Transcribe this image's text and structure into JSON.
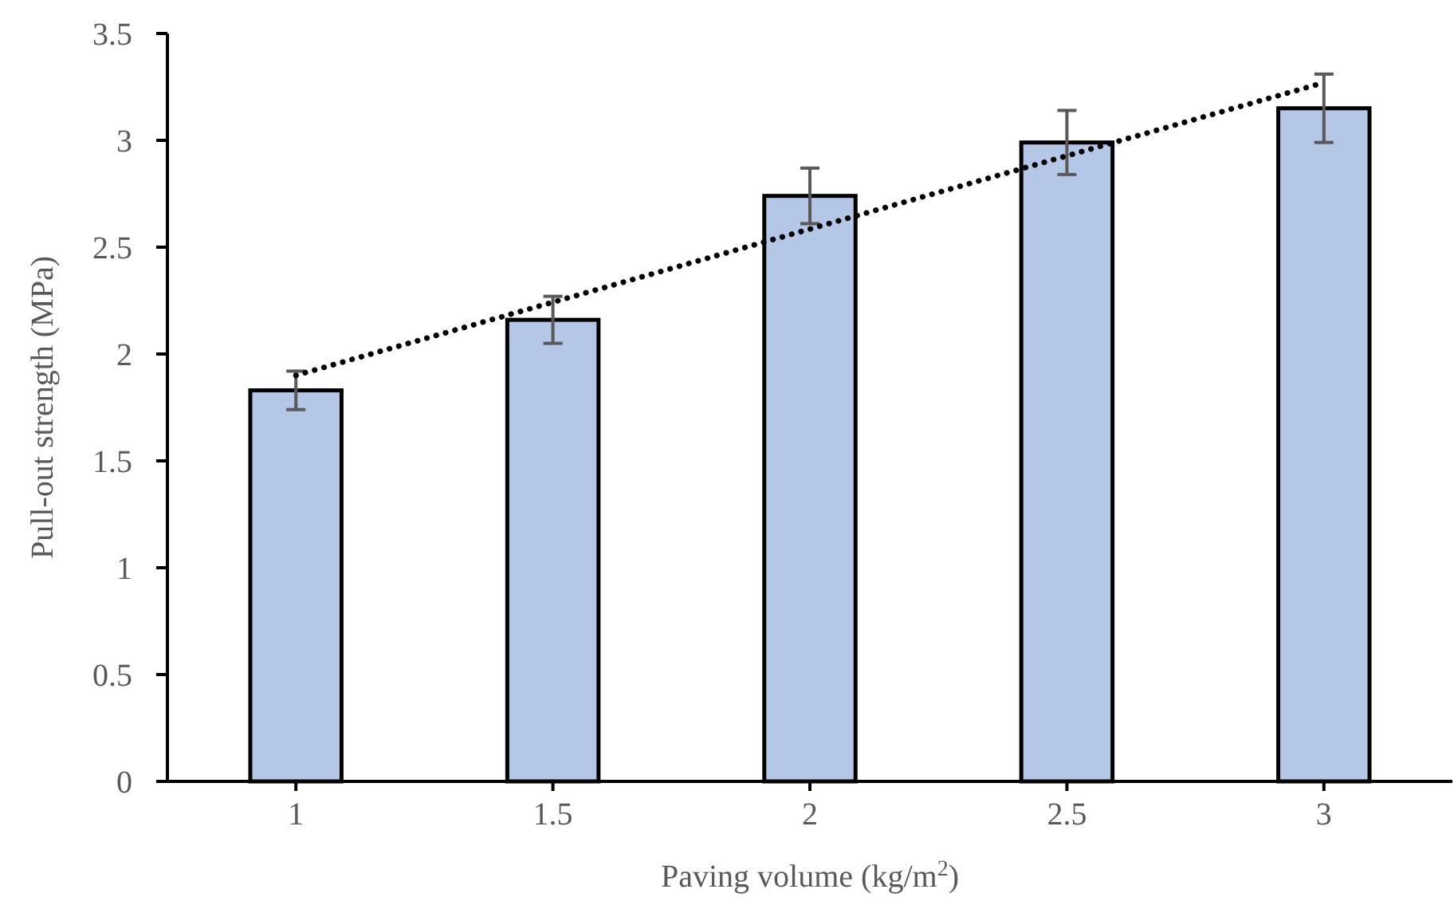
{
  "chart_data": {
    "type": "bar",
    "xlabel": "Paving volume (kg/m$^{2}$)",
    "ylabel": "Pull-out strength (MPa)",
    "categories": [
      "1",
      "1.5",
      "2",
      "2.5",
      "3"
    ],
    "series": [
      {
        "color": "#b4c7e7",
        "values": [
          1.83,
          2.16,
          2.74,
          2.99,
          3.15
        ],
        "errors": [
          0.09,
          0.11,
          0.13,
          0.15,
          0.16
        ]
      },
      {
        "type": "line",
        "color": "#000000",
        "x": [
          "1",
          "3"
        ],
        "values": [
          1.9,
          3.27
        ],
        "line_style": "dotted",
        "marker": "none"
      }
    ],
    "ylim": [
      0,
      3.5
    ],
    "yticks": [
      0,
      0.5,
      1,
      1.5,
      2,
      2.5,
      3,
      3.5
    ],
    "grid": false
  }
}
